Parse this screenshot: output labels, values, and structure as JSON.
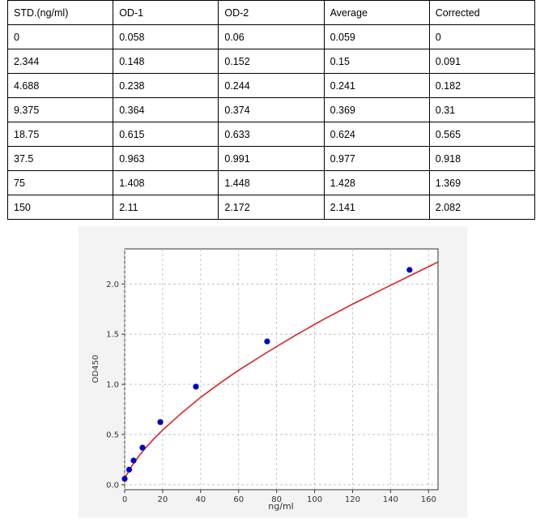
{
  "table": {
    "headers": [
      "STD.(ng/ml)",
      "OD-1",
      "OD-2",
      "Average",
      "Corrected"
    ],
    "rows": [
      [
        "0",
        "0.058",
        "0.06",
        "0.059",
        "0"
      ],
      [
        "2.344",
        "0.148",
        "0.152",
        "0.15",
        "0.091"
      ],
      [
        "4.688",
        "0.238",
        "0.244",
        "0.241",
        "0.182"
      ],
      [
        "9.375",
        "0.364",
        "0.374",
        "0.369",
        "0.31"
      ],
      [
        "18.75",
        "0.615",
        "0.633",
        "0.624",
        "0.565"
      ],
      [
        "37.5",
        "0.963",
        "0.991",
        "0.977",
        "0.918"
      ],
      [
        "75",
        "1.408",
        "1.448",
        "1.428",
        "1.369"
      ],
      [
        "150",
        "2.11",
        "2.172",
        "2.141",
        "2.082"
      ]
    ]
  },
  "chart_data": {
    "type": "scatter",
    "title": "",
    "xlabel": "ng/ml",
    "ylabel": "OD450",
    "xlim": [
      0,
      165
    ],
    "ylim": [
      -0.05,
      2.35
    ],
    "xticks": [
      "0",
      "20",
      "40",
      "60",
      "80",
      "100",
      "120",
      "140",
      "160"
    ],
    "yticks": [
      "0.0",
      "0.5",
      "1.0",
      "1.5",
      "2.0"
    ],
    "grid": true,
    "series": [
      {
        "kind": "points",
        "color": "#0000cc",
        "x": [
          0,
          2.344,
          4.688,
          9.375,
          18.75,
          37.5,
          75,
          150
        ],
        "y": [
          0.059,
          0.15,
          0.241,
          0.369,
          0.624,
          0.977,
          1.428,
          2.141
        ]
      },
      {
        "kind": "fit-curve",
        "color": "#dd2222",
        "x": [
          0,
          1,
          2,
          3,
          5,
          7.5,
          10,
          15,
          20,
          30,
          40,
          50,
          60,
          75,
          90,
          105,
          120,
          135,
          150,
          165
        ],
        "y": [
          0.059,
          0.097,
          0.131,
          0.163,
          0.22,
          0.285,
          0.345,
          0.45,
          0.545,
          0.715,
          0.87,
          1.01,
          1.14,
          1.32,
          1.49,
          1.65,
          1.8,
          1.94,
          2.08,
          2.22
        ]
      }
    ]
  }
}
